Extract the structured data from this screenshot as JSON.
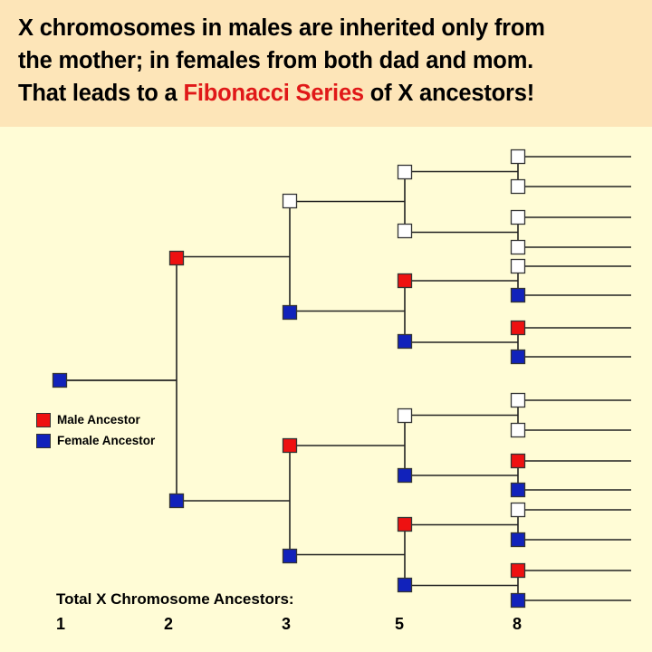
{
  "header": {
    "line1": "X chromosomes in males are inherited only from",
    "line2": "the mother; in females from both dad and mom.",
    "line3_pre": "That leads to a ",
    "line3_highlight": "Fibonacci Series",
    "line3_post": " of X ancestors!"
  },
  "legend": {
    "male_label": "Male Ancestor",
    "female_label": "Female Ancestor"
  },
  "colors": {
    "male": "#ee1111",
    "female": "#1122bb",
    "none": "#ffffff",
    "header_bg": "#fde5b8",
    "body_bg": "#fffcd6",
    "highlight": "#e01818"
  },
  "generations": [
    [
      "female"
    ],
    [
      "male",
      "female"
    ],
    [
      "none",
      "female",
      "male",
      "female"
    ],
    [
      "none",
      "none",
      "male",
      "female",
      "none",
      "female",
      "male",
      "female"
    ],
    [
      "none",
      "none",
      "none",
      "none",
      "none",
      "female",
      "male",
      "female",
      "none",
      "none",
      "male",
      "female",
      "none",
      "female",
      "male",
      "female"
    ]
  ],
  "totals": {
    "label": "Total X Chromosome Ancestors:",
    "counts": [
      "1",
      "2",
      "3",
      "5",
      "8"
    ]
  }
}
